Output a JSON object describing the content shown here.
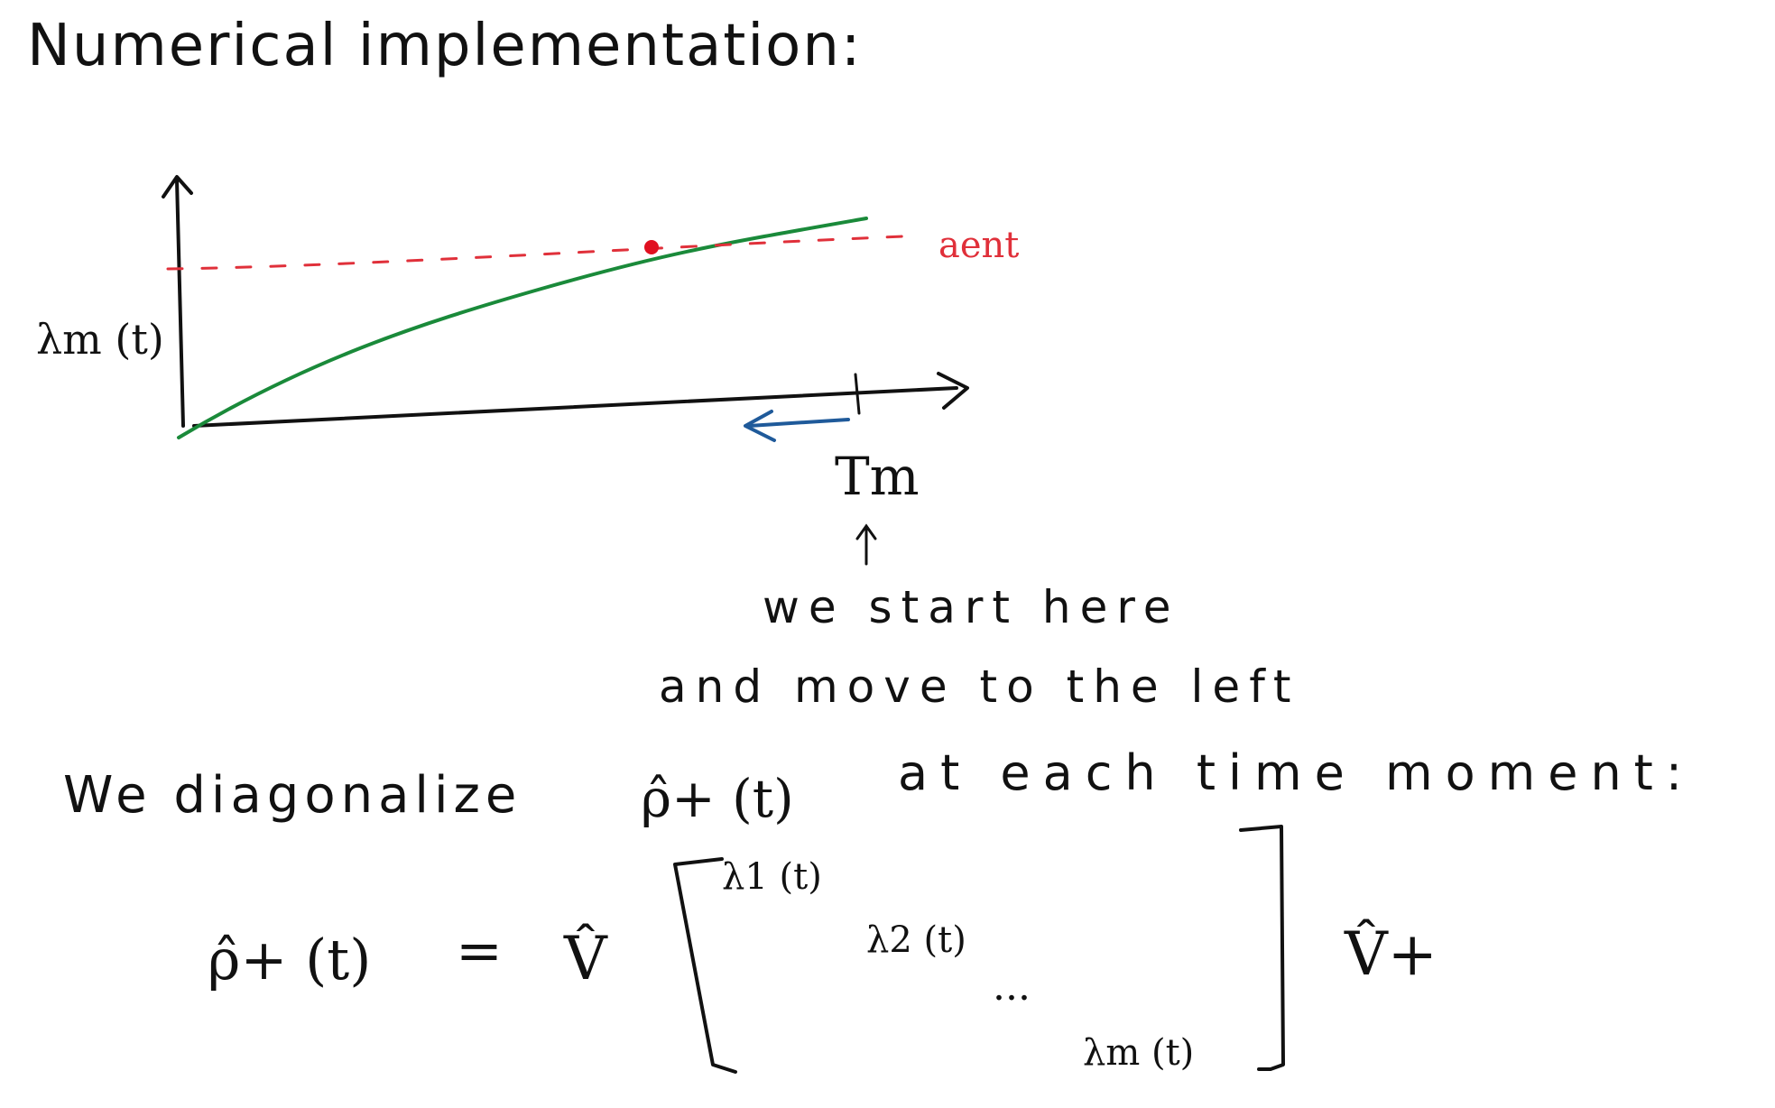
{
  "title": "Numerical implementation:",
  "graph": {
    "y_label": "λm (t)",
    "const_label": "aent",
    "x_mark_label": "Tm",
    "colors": {
      "curve": "#1a8a3a",
      "const_line": "#e0303a",
      "intersection_point": "#e01020",
      "backward_arrow": "#1f5a9a"
    }
  },
  "notes": {
    "line1": "we start here",
    "line2": "and move to the left"
  },
  "statement": {
    "prefix": "We diagonalize",
    "operator": "ρ̂+ (t)",
    "suffix": "at each time moment:"
  },
  "equation": {
    "lhs": "ρ̂+ (t)",
    "equals": "=",
    "v_left": "V̂",
    "diag_entries": [
      "λ1 (t)",
      "λ2 (t)",
      "...",
      "λm (t)"
    ],
    "v_right": "V̂+"
  }
}
